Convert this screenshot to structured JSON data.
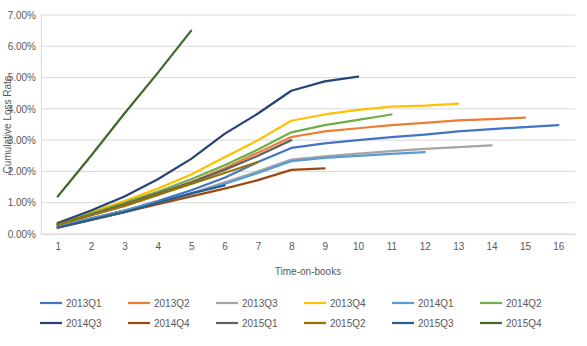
{
  "chart_data": {
    "type": "line",
    "x_label": "Time-on-books",
    "y_label": "Cumulative Loss Rate",
    "x": [
      1,
      2,
      3,
      4,
      5,
      6,
      7,
      8,
      9,
      10,
      11,
      12,
      13,
      14,
      15,
      16
    ],
    "xlim": [
      0.5,
      16.5
    ],
    "xticks": [
      1,
      2,
      3,
      4,
      5,
      6,
      7,
      8,
      9,
      10,
      11,
      12,
      13,
      14,
      15,
      16
    ],
    "ylim": [
      0,
      7
    ],
    "yticks": [
      {
        "value": 0,
        "label": "0.00%"
      },
      {
        "value": 1,
        "label": "1.00%"
      },
      {
        "value": 2,
        "label": "2.00%"
      },
      {
        "value": 3,
        "label": "3.00%"
      },
      {
        "value": 4,
        "label": "4.00%"
      },
      {
        "value": 5,
        "label": "5.00%"
      },
      {
        "value": 6,
        "label": "6.00%"
      },
      {
        "value": 7,
        "label": "7.00%"
      }
    ],
    "grid": true,
    "legend": "bottom",
    "series": [
      {
        "name": "2013Q1",
        "color": "#4472c4",
        "values": [
          0.25,
          0.5,
          0.75,
          1.05,
          1.4,
          1.8,
          2.3,
          2.75,
          2.9,
          3.0,
          3.1,
          3.18,
          3.28,
          3.35,
          3.42,
          3.48
        ]
      },
      {
        "name": "2013Q2",
        "color": "#ed7d31",
        "values": [
          0.3,
          0.6,
          0.9,
          1.25,
          1.65,
          2.1,
          2.6,
          3.1,
          3.28,
          3.38,
          3.48,
          3.55,
          3.63,
          3.67,
          3.72,
          null
        ]
      },
      {
        "name": "2013Q3",
        "color": "#a5a5a5",
        "values": [
          0.25,
          0.5,
          0.75,
          1.0,
          1.3,
          1.65,
          2.0,
          2.38,
          2.48,
          2.57,
          2.65,
          2.72,
          2.78,
          2.83,
          null,
          null
        ]
      },
      {
        "name": "2013Q4",
        "color": "#ffc000",
        "values": [
          0.35,
          0.7,
          1.05,
          1.45,
          1.9,
          2.45,
          3.0,
          3.62,
          3.82,
          3.97,
          4.07,
          4.1,
          4.17,
          null,
          null,
          null
        ]
      },
      {
        "name": "2014Q1",
        "color": "#5b9bd5",
        "values": [
          0.25,
          0.5,
          0.75,
          1.0,
          1.28,
          1.6,
          1.95,
          2.33,
          2.43,
          2.5,
          2.56,
          2.62,
          null,
          null,
          null,
          null
        ]
      },
      {
        "name": "2014Q2",
        "color": "#70ad47",
        "values": [
          0.3,
          0.65,
          1.0,
          1.35,
          1.75,
          2.2,
          2.7,
          3.25,
          3.48,
          3.65,
          3.82,
          null,
          null,
          null,
          null,
          null
        ]
      },
      {
        "name": "2014Q3",
        "color": "#264478",
        "values": [
          0.35,
          0.75,
          1.2,
          1.75,
          2.4,
          3.2,
          3.85,
          4.58,
          4.88,
          5.03,
          null,
          null,
          null,
          null,
          null,
          null
        ]
      },
      {
        "name": "2014Q4",
        "color": "#9e480e",
        "values": [
          0.2,
          0.45,
          0.7,
          0.95,
          1.2,
          1.45,
          1.72,
          2.05,
          2.1,
          null,
          null,
          null,
          null,
          null,
          null,
          null
        ]
      },
      {
        "name": "2015Q1",
        "color": "#636363",
        "values": [
          0.3,
          0.62,
          0.95,
          1.3,
          1.65,
          2.05,
          2.5,
          3.0,
          null,
          null,
          null,
          null,
          null,
          null,
          null,
          null
        ]
      },
      {
        "name": "2015Q2",
        "color": "#997300",
        "values": [
          0.3,
          0.6,
          0.9,
          1.25,
          1.6,
          1.95,
          2.3,
          null,
          null,
          null,
          null,
          null,
          null,
          null,
          null,
          null
        ]
      },
      {
        "name": "2015Q3",
        "color": "#255e91",
        "values": [
          0.2,
          0.45,
          0.7,
          1.0,
          1.3,
          1.55,
          null,
          null,
          null,
          null,
          null,
          null,
          null,
          null,
          null,
          null
        ]
      },
      {
        "name": "2015Q4",
        "color": "#43682b",
        "values": [
          1.2,
          2.5,
          3.85,
          5.15,
          6.5,
          null,
          null,
          null,
          null,
          null,
          null,
          null,
          null,
          null,
          null,
          null
        ]
      }
    ]
  }
}
